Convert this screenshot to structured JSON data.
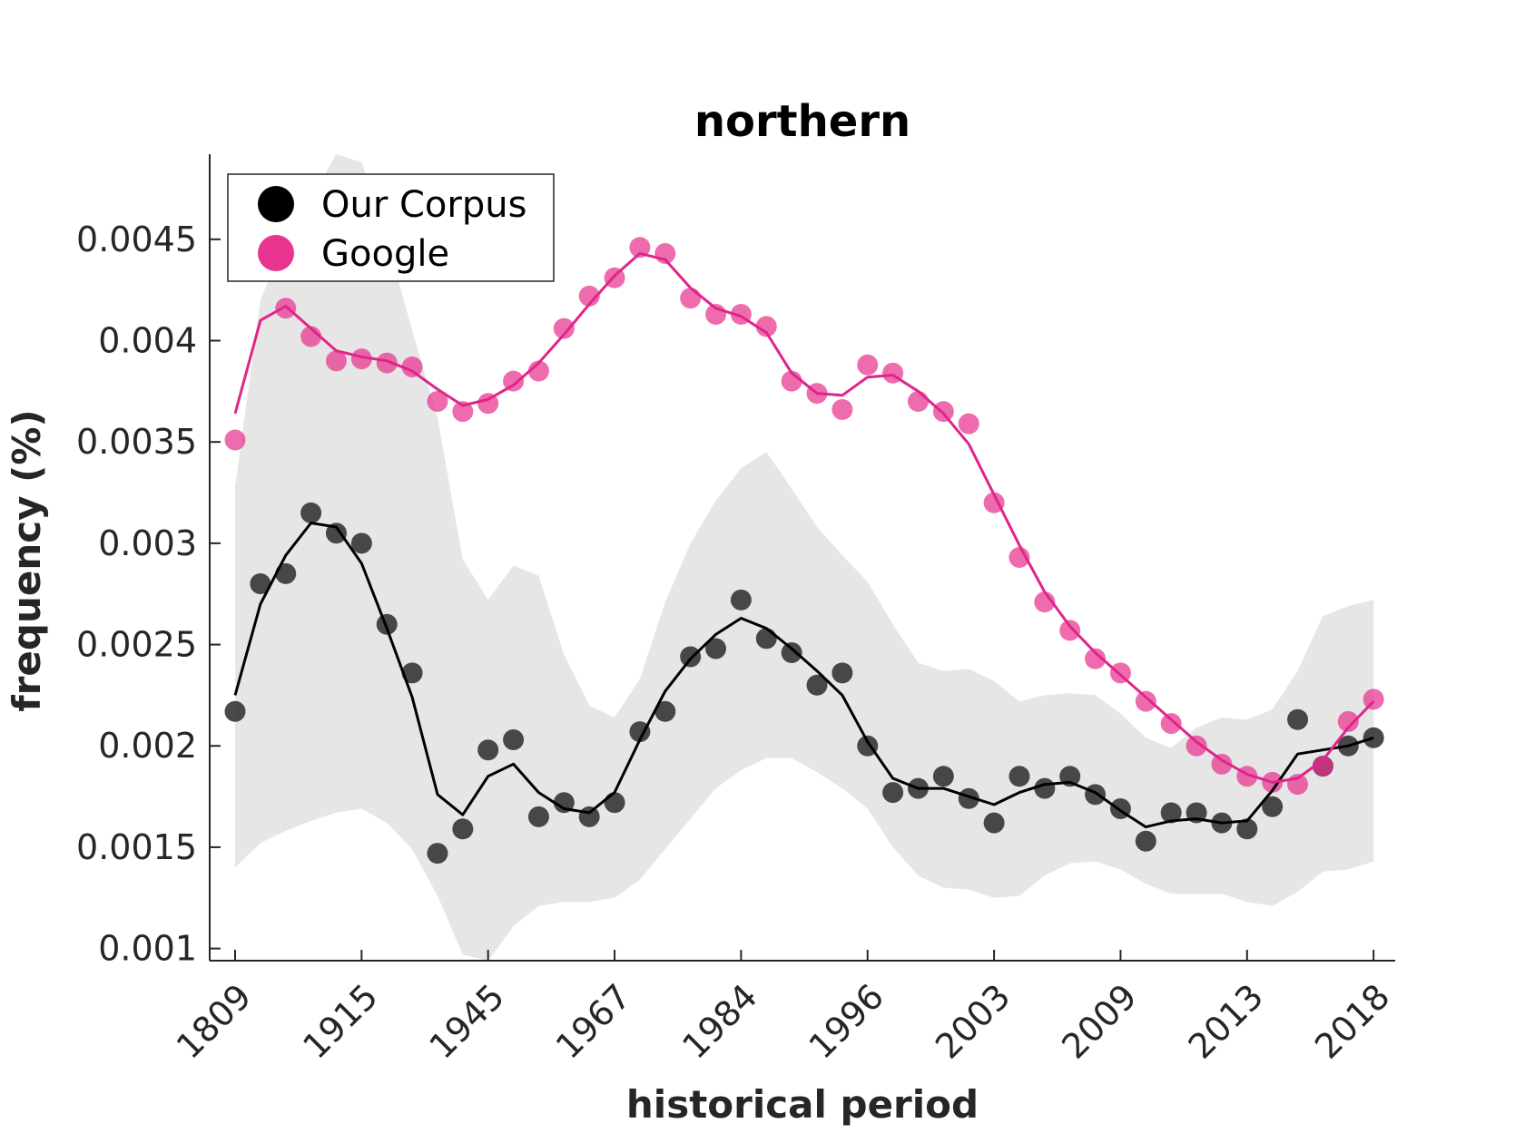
{
  "chart_data": {
    "type": "line",
    "title": "northern",
    "xlabel": "historical period",
    "ylabel": "frequency (%)",
    "x_tick_labels": [
      "1809",
      "1915",
      "1945",
      "1967",
      "1984",
      "1996",
      "2003",
      "2009",
      "2013",
      "2018"
    ],
    "x_tick_indices": [
      0,
      5,
      10,
      15,
      20,
      25,
      30,
      35,
      40,
      45
    ],
    "y_ticks": [
      0.001,
      0.0015,
      0.002,
      0.0025,
      0.003,
      0.0035,
      0.004,
      0.0045
    ],
    "y_tick_labels": [
      "0.001",
      "0.0015",
      "0.002",
      "0.0025",
      "0.003",
      "0.0035",
      "0.004",
      "0.0045"
    ],
    "ylim": [
      0.00094,
      0.00492
    ],
    "xlim": [
      -1,
      46
    ],
    "grid": false,
    "legend_position": "top-left",
    "series": [
      {
        "name": "Our Corpus",
        "color": "#000000",
        "points": [
          0.00217,
          0.0028,
          0.00285,
          0.00315,
          0.00305,
          0.003,
          0.0026,
          0.00236,
          0.00147,
          0.00159,
          0.00198,
          0.00203,
          0.00165,
          0.00172,
          0.00165,
          0.00172,
          0.00207,
          0.00217,
          0.00244,
          0.00248,
          0.00272,
          0.00253,
          0.00246,
          0.0023,
          0.00236,
          0.002,
          0.00177,
          0.00179,
          0.00185,
          0.00174,
          0.00162,
          0.00185,
          0.00179,
          0.00185,
          0.00176,
          0.00169,
          0.00153,
          0.00167,
          0.00167,
          0.00162,
          0.00159,
          0.0017,
          0.00213,
          0.0019,
          0.002,
          0.00204
        ],
        "smoothed": [
          0.00225,
          0.0027,
          0.00294,
          0.0031,
          0.00308,
          0.0029,
          0.00258,
          0.00224,
          0.00176,
          0.00166,
          0.00185,
          0.00191,
          0.00177,
          0.00169,
          0.00167,
          0.00177,
          0.00203,
          0.00227,
          0.00243,
          0.00255,
          0.00263,
          0.00258,
          0.00248,
          0.00237,
          0.00225,
          0.00202,
          0.00184,
          0.00179,
          0.00179,
          0.00175,
          0.00171,
          0.00177,
          0.00181,
          0.00182,
          0.00177,
          0.00168,
          0.0016,
          0.00163,
          0.00164,
          0.00162,
          0.00163,
          0.00178,
          0.00196,
          0.00198,
          0.002,
          0.00204
        ],
        "band_upper": [
          0.00328,
          0.0042,
          0.0045,
          0.0047,
          0.00492,
          0.00488,
          0.0045,
          0.00405,
          0.00362,
          0.00292,
          0.00272,
          0.00289,
          0.00284,
          0.00245,
          0.0022,
          0.00214,
          0.00233,
          0.00271,
          0.003,
          0.00321,
          0.00337,
          0.00345,
          0.00327,
          0.00308,
          0.00294,
          0.00281,
          0.0026,
          0.00241,
          0.00237,
          0.00238,
          0.00232,
          0.00222,
          0.00225,
          0.00226,
          0.00225,
          0.00216,
          0.00204,
          0.00199,
          0.00209,
          0.00214,
          0.00213,
          0.00218,
          0.00237,
          0.00264,
          0.00269,
          0.00272
        ],
        "band_lower": [
          0.0014,
          0.00152,
          0.00158,
          0.00163,
          0.00167,
          0.00169,
          0.00162,
          0.00149,
          0.00126,
          0.00097,
          0.00094,
          0.00111,
          0.00121,
          0.00123,
          0.00123,
          0.00125,
          0.00134,
          0.00149,
          0.00164,
          0.00179,
          0.00188,
          0.00194,
          0.00194,
          0.00187,
          0.00179,
          0.00169,
          0.0015,
          0.00136,
          0.0013,
          0.00129,
          0.00125,
          0.00126,
          0.00136,
          0.00142,
          0.00143,
          0.00139,
          0.00132,
          0.00127,
          0.00127,
          0.00127,
          0.00123,
          0.00121,
          0.00128,
          0.00138,
          0.00139,
          0.00143
        ]
      },
      {
        "name": "Google",
        "color": "#e8338f",
        "points": [
          0.00351,
          null,
          0.00416,
          0.00402,
          0.0039,
          0.00391,
          0.00389,
          0.00387,
          0.0037,
          0.00365,
          0.00369,
          0.0038,
          0.00385,
          0.00406,
          0.00422,
          0.00431,
          0.00446,
          0.00443,
          0.00421,
          0.00413,
          0.00413,
          0.00407,
          0.0038,
          0.00374,
          0.00366,
          0.00388,
          0.00384,
          0.0037,
          0.00365,
          0.00359,
          0.0032,
          0.00293,
          0.00271,
          0.00257,
          0.00243,
          0.00236,
          0.00222,
          0.00211,
          0.002,
          0.00191,
          0.00185,
          0.00182,
          0.00181,
          0.0019,
          0.00212,
          0.00223
        ],
        "smoothed": [
          0.00364,
          0.0041,
          0.00417,
          0.00406,
          0.00395,
          0.00392,
          0.0039,
          0.00385,
          0.00376,
          0.00368,
          0.00371,
          0.00378,
          0.00389,
          0.00403,
          0.00418,
          0.00432,
          0.00443,
          0.0044,
          0.00426,
          0.00416,
          0.00412,
          0.00404,
          0.00384,
          0.00374,
          0.00373,
          0.00382,
          0.00383,
          0.00375,
          0.00364,
          0.00349,
          0.00324,
          0.00299,
          0.00276,
          0.00259,
          0.00246,
          0.00235,
          0.00224,
          0.00213,
          0.00202,
          0.00193,
          0.00186,
          0.00182,
          0.00184,
          0.00193,
          0.00209,
          0.00222
        ]
      }
    ]
  }
}
